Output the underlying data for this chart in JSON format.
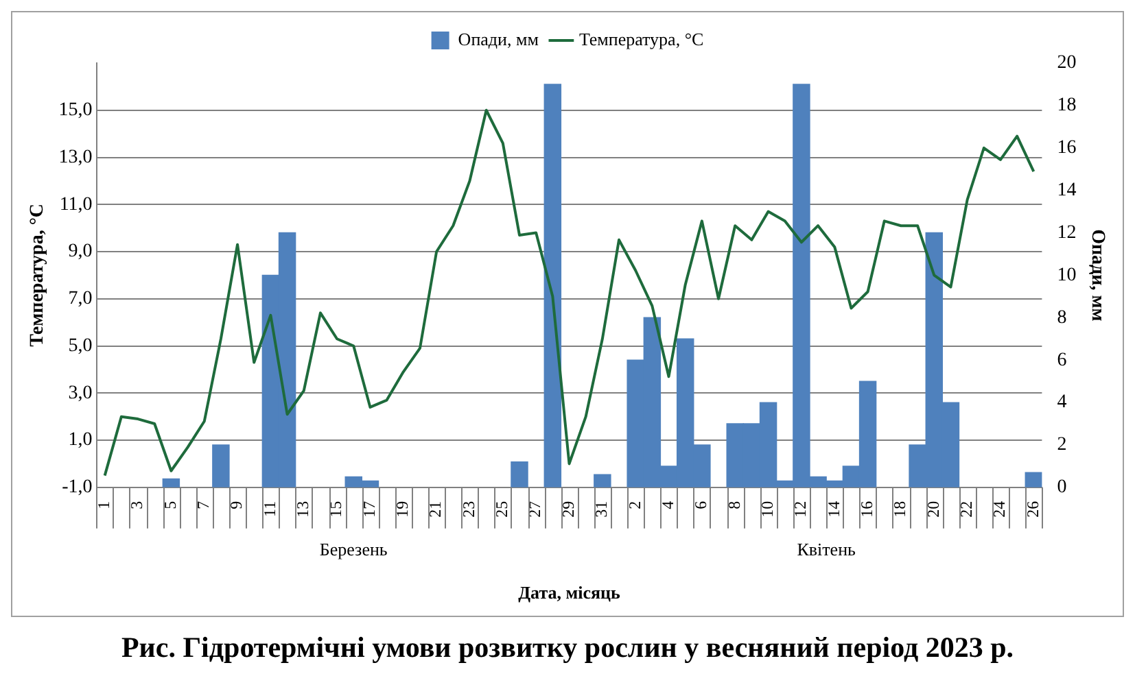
{
  "chart_data": {
    "type": "bar",
    "title": "Рис. Гідротермічні умови розвитку рослин у весняний період 2023 р.",
    "xlabel": "Дата, місяць",
    "ylabel": "Температура, °С",
    "y2label": "Опади, мм",
    "categories": [
      "1",
      null,
      "3",
      null,
      "5",
      null,
      "7",
      null,
      "9",
      null,
      "11",
      null,
      "13",
      null,
      "15",
      null,
      "17",
      null,
      "19",
      null,
      "21",
      null,
      "23",
      null,
      "25",
      null,
      "27",
      null,
      "29",
      null,
      "31",
      null,
      "2",
      null,
      "4",
      null,
      "6",
      null,
      "8",
      null,
      "10",
      null,
      "12",
      null,
      "14",
      null,
      "16",
      null,
      "18",
      null,
      "20",
      null,
      "22",
      null,
      "24",
      null,
      "26"
    ],
    "annotations": [
      "Березень",
      "Квітень"
    ],
    "series": [
      {
        "name": "Опади, мм",
        "axis": "y2",
        "color": "#4f81bd",
        "values": [
          null,
          null,
          null,
          null,
          0.4,
          null,
          null,
          2.0,
          null,
          null,
          10.0,
          12.0,
          null,
          null,
          null,
          0.5,
          0.3,
          null,
          null,
          null,
          null,
          null,
          null,
          null,
          null,
          1.2,
          null,
          19.0,
          null,
          null,
          0.6,
          null,
          6.0,
          8.0,
          1.0,
          7.0,
          2.0,
          null,
          3.0,
          3.0,
          4.0,
          0.3,
          19.0,
          0.5,
          0.3,
          1.0,
          5.0,
          null,
          null,
          2.0,
          12.0,
          4.0,
          null,
          null,
          null,
          null,
          0.7
        ]
      },
      {
        "name": "Температура, °С",
        "type": "line",
        "axis": "y",
        "color": "#1e6b3c",
        "values": [
          -0.5,
          2.0,
          1.9,
          1.7,
          -0.3,
          0.7,
          1.8,
          5.3,
          9.3,
          4.3,
          6.3,
          2.1,
          3.1,
          6.4,
          5.3,
          5.0,
          2.4,
          2.7,
          3.9,
          4.9,
          9.0,
          10.1,
          12.0,
          15.0,
          13.6,
          9.7,
          9.8,
          7.1,
          0.0,
          2.0,
          5.3,
          9.5,
          8.2,
          6.7,
          3.7,
          7.6,
          10.3,
          7.0,
          10.1,
          9.5,
          10.7,
          10.3,
          9.4,
          10.1,
          9.2,
          6.6,
          7.3,
          10.3,
          10.1,
          10.1,
          8.0,
          7.5,
          11.2,
          13.4,
          12.9,
          13.9,
          12.4
        ]
      }
    ],
    "ylim": [
      -1,
      17
    ],
    "yticks": [
      {
        "value": -1,
        "label": "-1,0"
      },
      {
        "value": 1,
        "label": "1,0"
      },
      {
        "value": 3,
        "label": "3,0"
      },
      {
        "value": 5,
        "label": "5,0"
      },
      {
        "value": 7,
        "label": "7,0"
      },
      {
        "value": 9,
        "label": "9,0"
      },
      {
        "value": 11,
        "label": "11,0"
      },
      {
        "value": 13,
        "label": "13,0"
      },
      {
        "value": 15,
        "label": "15,0"
      }
    ],
    "y2lim": [
      0,
      20
    ],
    "y2ticks": [
      0,
      2,
      4,
      6,
      8,
      10,
      12,
      14,
      16,
      18,
      20
    ],
    "grid": "y",
    "legend": "top",
    "marker": "none",
    "line_style": "solid"
  }
}
